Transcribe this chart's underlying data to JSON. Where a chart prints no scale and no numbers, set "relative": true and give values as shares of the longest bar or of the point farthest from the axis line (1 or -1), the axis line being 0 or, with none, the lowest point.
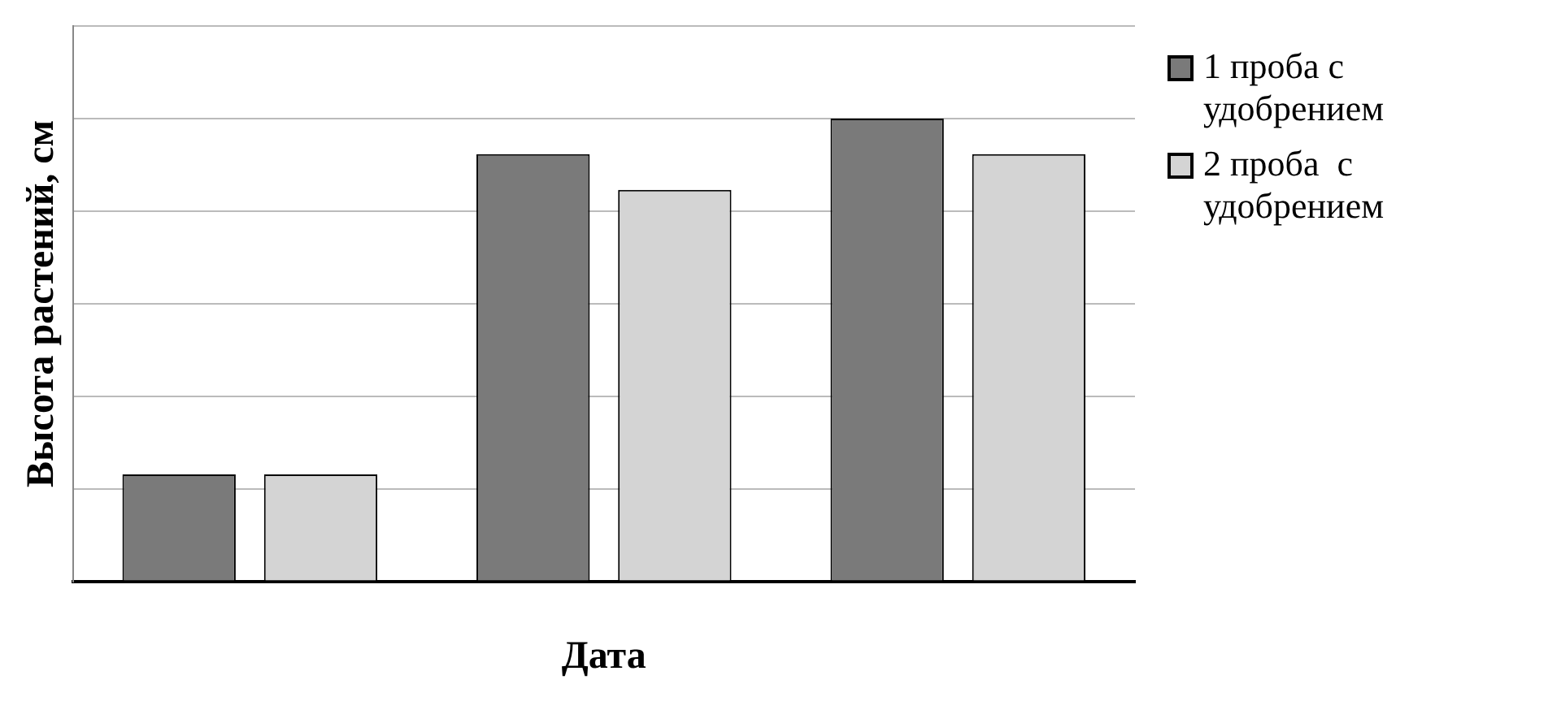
{
  "chart_data": {
    "type": "bar",
    "relative": true,
    "xlabel": "Дата",
    "ylabel": "Высота растений, см",
    "categories": [
      null,
      null,
      null
    ],
    "series": [
      {
        "name": "1 проба с удобрением",
        "color": "#7a7a7a",
        "values": [
          0.2308,
          0.923,
          1
        ]
      },
      {
        "name": "2 проба  с удобрением",
        "color": "#d4d4d4",
        "values": [
          0.2308,
          0.846,
          0.923
        ]
      }
    ],
    "grid": "y",
    "legend": "right"
  }
}
